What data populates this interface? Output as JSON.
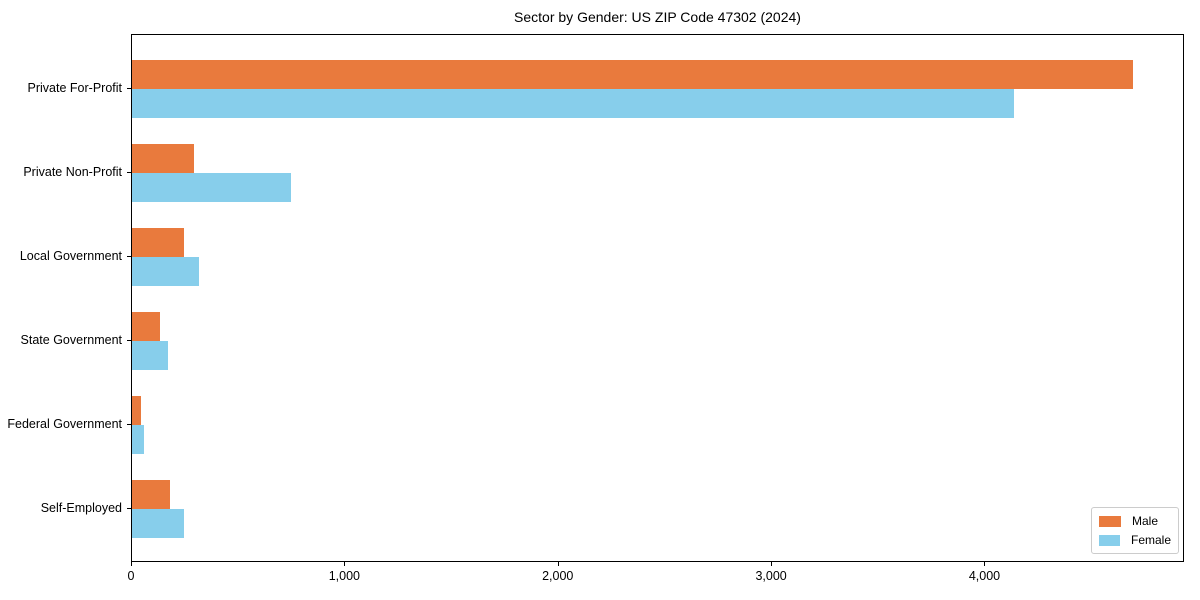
{
  "chart_data": {
    "type": "bar",
    "orientation": "horizontal",
    "title": "Sector by Gender: US ZIP Code 47302 (2024)",
    "categories": [
      "Private For-Profit",
      "Private Non-Profit",
      "Local Government",
      "State Government",
      "Federal Government",
      "Self-Employed"
    ],
    "series": [
      {
        "name": "Male",
        "color": "#e97a3d",
        "values": [
          4700,
          290,
          245,
          130,
          40,
          180
        ]
      },
      {
        "name": "Female",
        "color": "#87ceeb",
        "values": [
          4140,
          745,
          315,
          170,
          55,
          245
        ]
      }
    ],
    "xlabel": "",
    "ylabel": "",
    "xlim": [
      0,
      4935
    ],
    "xticks": [
      {
        "value": 0,
        "label": "0"
      },
      {
        "value": 1000,
        "label": "1,000"
      },
      {
        "value": 2000,
        "label": "2,000"
      },
      {
        "value": 3000,
        "label": "3,000"
      },
      {
        "value": 4000,
        "label": "4,000"
      }
    ],
    "grid": false,
    "legend": {
      "position": "lower right",
      "entries": [
        "Male",
        "Female"
      ]
    }
  }
}
